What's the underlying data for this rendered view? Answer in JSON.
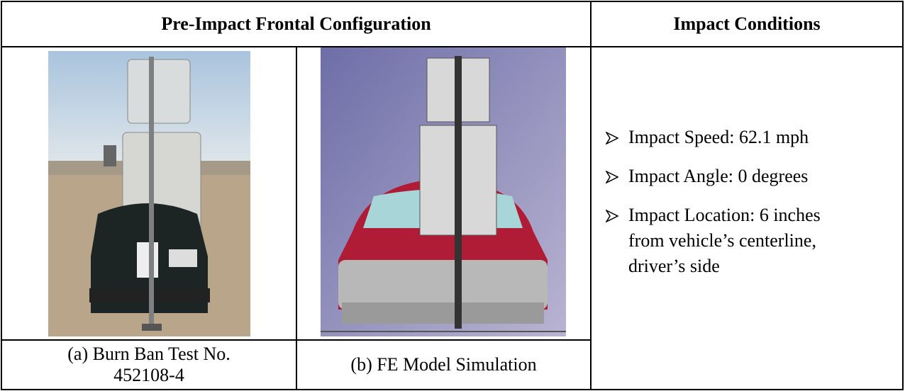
{
  "table": {
    "header": [
      "Pre-Impact Frontal Configuration",
      "Impact Conditions"
    ],
    "images": [
      {
        "caption": "(a) Burn Ban Test No. 452108-4"
      },
      {
        "caption": "(b) FE Model Simulation"
      }
    ],
    "conditions": [
      "Impact Speed: 62.1 mph",
      "Impact Angle: 0 degrees",
      "Impact Location: 6 inches from vehicle’s centerline, driver’s side"
    ]
  }
}
